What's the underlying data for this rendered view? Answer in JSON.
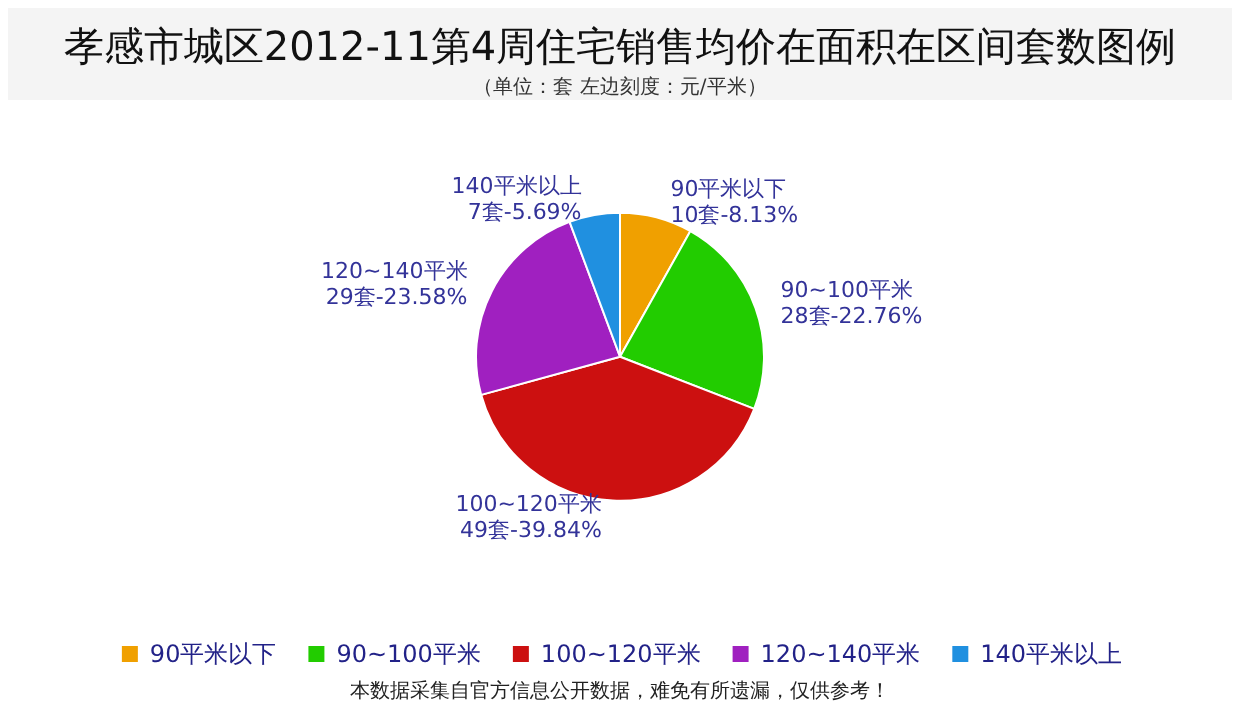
{
  "chart_data": {
    "type": "pie",
    "title": "孝感市城区2012-11第4周住宅销售均价在面积在区间套数图例",
    "subtitle": "（单位：套 左边刻度：元/平米）",
    "categories": [
      "90平米以下",
      "90~100平米",
      "100~120平米",
      "120~140平米",
      "140平米以上"
    ],
    "values": [
      10,
      28,
      49,
      29,
      7
    ],
    "value_labels": [
      "10套-8.13%",
      "28套-22.76%",
      "49套-39.84%",
      "29套-23.58%",
      "7套-5.69%"
    ],
    "colors": [
      "#f0a000",
      "#22cc00",
      "#cc1010",
      "#a020c0",
      "#2090e0"
    ],
    "legend": "bottom",
    "annotations": [
      "本数据采集自官方信息公开数据，难免有所遗漏，仅供参考！"
    ]
  }
}
